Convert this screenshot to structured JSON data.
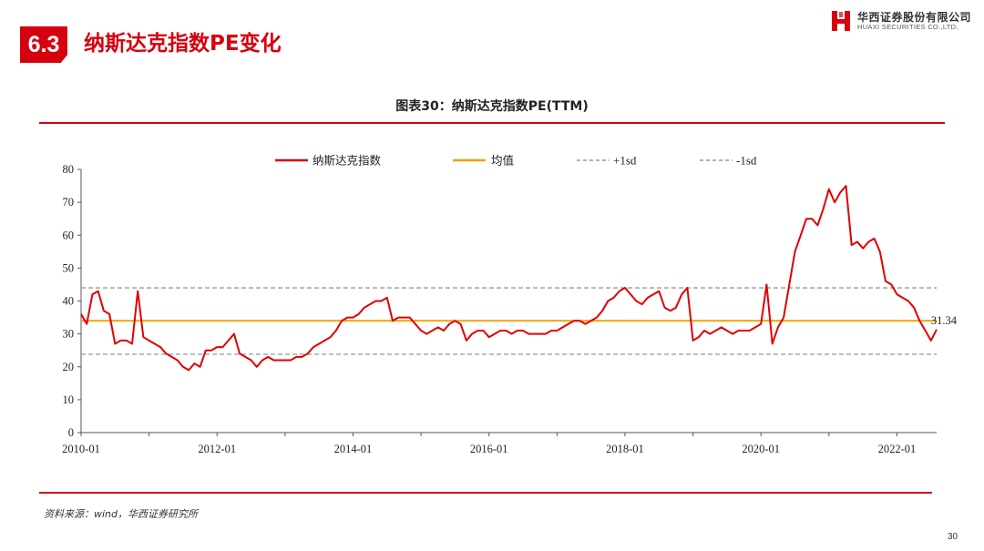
{
  "header": {
    "section_number": "6.3",
    "section_title": "纳斯达克指数PE变化",
    "logo_cn": "华西证券股份有限公司",
    "logo_en": "HUAXI SECURITIES CO.,LTD.",
    "brand_color": "#d7000f"
  },
  "chart_caption": "图表30：纳斯达克指数PE(TTM)",
  "source": "资料来源：wind，华西证券研究所",
  "page_number": "30",
  "chart_data": {
    "type": "line",
    "title": "",
    "xlabel": "",
    "ylabel": "",
    "ylim": [
      0,
      80
    ],
    "y_ticks": [
      "0",
      "10",
      "20",
      "30",
      "40",
      "50",
      "60",
      "70",
      "80"
    ],
    "x_tick_labels": [
      "2010-01",
      "2012-01",
      "2014-01",
      "2016-01",
      "2018-01",
      "2020-01",
      "2022-01"
    ],
    "x_range": [
      "2010-01",
      "2022-08"
    ],
    "legend_position": "top-center",
    "grid": false,
    "colors": {
      "pe": "#e00000",
      "mean": "#f0a000",
      "sd": "#999999"
    },
    "series": [
      {
        "name": "纳斯达克指数",
        "x": [
          "2010-01",
          "2010-02",
          "2010-03",
          "2010-04",
          "2010-05",
          "2010-06",
          "2010-07",
          "2010-08",
          "2010-09",
          "2010-10",
          "2010-11",
          "2010-12",
          "2011-01",
          "2011-02",
          "2011-03",
          "2011-04",
          "2011-05",
          "2011-06",
          "2011-07",
          "2011-08",
          "2011-09",
          "2011-10",
          "2011-11",
          "2011-12",
          "2012-01",
          "2012-02",
          "2012-03",
          "2012-04",
          "2012-05",
          "2012-06",
          "2012-07",
          "2012-08",
          "2012-09",
          "2012-10",
          "2012-11",
          "2012-12",
          "2013-01",
          "2013-02",
          "2013-03",
          "2013-04",
          "2013-05",
          "2013-06",
          "2013-07",
          "2013-08",
          "2013-09",
          "2013-10",
          "2013-11",
          "2013-12",
          "2014-01",
          "2014-02",
          "2014-03",
          "2014-04",
          "2014-05",
          "2014-06",
          "2014-07",
          "2014-08",
          "2014-09",
          "2014-10",
          "2014-11",
          "2014-12",
          "2015-01",
          "2015-02",
          "2015-03",
          "2015-04",
          "2015-05",
          "2015-06",
          "2015-07",
          "2015-08",
          "2015-09",
          "2015-10",
          "2015-11",
          "2015-12",
          "2016-01",
          "2016-02",
          "2016-03",
          "2016-04",
          "2016-05",
          "2016-06",
          "2016-07",
          "2016-08",
          "2016-09",
          "2016-10",
          "2016-11",
          "2016-12",
          "2017-01",
          "2017-02",
          "2017-03",
          "2017-04",
          "2017-05",
          "2017-06",
          "2017-07",
          "2017-08",
          "2017-09",
          "2017-10",
          "2017-11",
          "2017-12",
          "2018-01",
          "2018-02",
          "2018-03",
          "2018-04",
          "2018-05",
          "2018-06",
          "2018-07",
          "2018-08",
          "2018-09",
          "2018-10",
          "2018-11",
          "2018-12",
          "2019-01",
          "2019-02",
          "2019-03",
          "2019-04",
          "2019-05",
          "2019-06",
          "2019-07",
          "2019-08",
          "2019-09",
          "2019-10",
          "2019-11",
          "2019-12",
          "2020-01",
          "2020-02",
          "2020-03",
          "2020-04",
          "2020-05",
          "2020-06",
          "2020-07",
          "2020-08",
          "2020-09",
          "2020-10",
          "2020-11",
          "2020-12",
          "2021-01",
          "2021-02",
          "2021-03",
          "2021-04",
          "2021-05",
          "2021-06",
          "2021-07",
          "2021-08",
          "2021-09",
          "2021-10",
          "2021-11",
          "2021-12",
          "2022-01",
          "2022-02",
          "2022-03",
          "2022-04",
          "2022-05",
          "2022-06",
          "2022-07",
          "2022-08"
        ],
        "values": [
          36,
          33,
          42,
          43,
          37,
          36,
          27,
          28,
          28,
          27,
          43,
          29,
          28,
          27,
          26,
          24,
          23,
          22,
          20,
          19,
          21,
          20,
          25,
          25,
          26,
          26,
          28,
          30,
          24,
          23,
          22,
          20,
          22,
          23,
          22,
          22,
          22,
          22,
          23,
          23,
          24,
          26,
          27,
          28,
          29,
          31,
          34,
          35,
          35,
          36,
          38,
          39,
          40,
          40,
          41,
          34,
          35,
          35,
          35,
          33,
          31,
          30,
          31,
          32,
          31,
          33,
          34,
          33,
          28,
          30,
          31,
          31,
          29,
          30,
          31,
          31,
          30,
          31,
          31,
          30,
          30,
          30,
          30,
          31,
          31,
          32,
          33,
          34,
          34,
          33,
          34,
          35,
          37,
          40,
          41,
          43,
          44,
          42,
          40,
          39,
          41,
          42,
          43,
          38,
          37,
          38,
          42,
          44,
          28,
          29,
          31,
          30,
          31,
          32,
          31,
          30,
          31,
          31,
          31,
          32,
          33,
          45,
          27,
          32,
          35,
          45,
          55,
          60,
          65,
          65,
          63,
          68,
          74,
          70,
          73,
          75,
          57,
          58,
          56,
          58,
          59,
          55,
          46,
          45,
          42,
          41,
          40,
          38,
          34,
          31,
          28,
          31.34
        ]
      },
      {
        "name": "均值",
        "values": [
          34
        ]
      },
      {
        "name": "+1sd",
        "values": [
          44
        ]
      },
      {
        "name": "-1sd",
        "values": [
          23.8
        ]
      }
    ],
    "annotations": [
      {
        "label": "31.34",
        "x": "2022-08",
        "y": 31.34
      }
    ]
  }
}
